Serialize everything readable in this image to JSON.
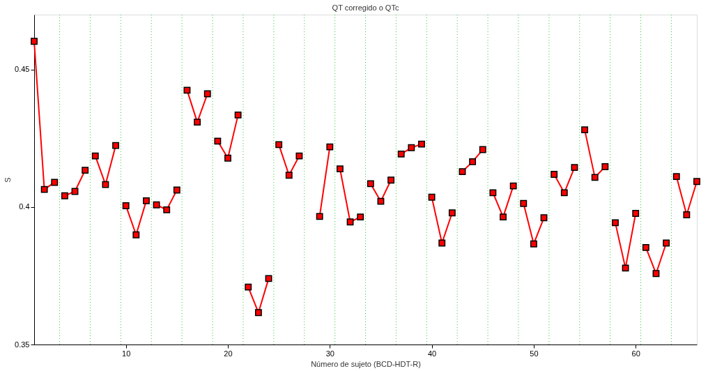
{
  "chart_data": {
    "type": "line",
    "title": "QT corregido o QTc",
    "xlabel": "Número de sujeto (BCD-HDT-R)",
    "ylabel": "S",
    "xlim": [
      1,
      66
    ],
    "ylim": [
      0.35,
      0.47
    ],
    "xticks": [
      10,
      20,
      30,
      40,
      50,
      60
    ],
    "yticks": [
      {
        "value": 0.35,
        "label": "0.35"
      },
      {
        "value": 0.4,
        "label": "0.4"
      },
      {
        "value": 0.45,
        "label": "0.45"
      }
    ],
    "grid": false,
    "marker": "square",
    "line_style": "solid",
    "series": [
      {
        "color": "#ff0000",
        "x": [
          1,
          2,
          3
        ],
        "values": [
          0.4603,
          0.4064,
          0.409
        ]
      },
      {
        "color": "#ff0000",
        "x": [
          4,
          5,
          6
        ],
        "values": [
          0.4041,
          0.4057,
          0.4134
        ]
      },
      {
        "color": "#ff0000",
        "x": [
          7,
          8,
          9
        ],
        "values": [
          0.4186,
          0.4082,
          0.4224
        ]
      },
      {
        "color": "#ff0000",
        "x": [
          10,
          11,
          12
        ],
        "values": [
          0.4005,
          0.3899,
          0.4023
        ]
      },
      {
        "color": "#ff0000",
        "x": [
          13,
          14,
          15
        ],
        "values": [
          0.4008,
          0.399,
          0.4062
        ]
      },
      {
        "color": "#ff0000",
        "x": [
          16,
          17,
          18
        ],
        "values": [
          0.4425,
          0.4309,
          0.4412
        ]
      },
      {
        "color": "#ff0000",
        "x": [
          19,
          20,
          21
        ],
        "values": [
          0.424,
          0.4178,
          0.4335
        ]
      },
      {
        "color": "#ff0000",
        "x": [
          22,
          23,
          24
        ],
        "values": [
          0.3709,
          0.3616,
          0.374
        ]
      },
      {
        "color": "#ff0000",
        "x": [
          25,
          26,
          27
        ],
        "values": [
          0.4227,
          0.4116,
          0.4186
        ]
      },
      {
        "color": "#ff0000",
        "x": [
          29,
          30
        ],
        "values": [
          0.3966,
          0.4219
        ]
      },
      {
        "color": "#ff0000",
        "x": [
          31,
          32,
          33
        ],
        "values": [
          0.4139,
          0.3946,
          0.3964
        ]
      },
      {
        "color": "#ff0000",
        "x": [
          34,
          35,
          36
        ],
        "values": [
          0.4085,
          0.4021,
          0.4098
        ]
      },
      {
        "color": "#ff0000",
        "x": [
          37,
          38,
          39
        ],
        "values": [
          0.4193,
          0.4216,
          0.4229
        ]
      },
      {
        "color": "#ff0000",
        "x": [
          40,
          41,
          42
        ],
        "values": [
          0.4036,
          0.3869,
          0.3979
        ]
      },
      {
        "color": "#ff0000",
        "x": [
          43,
          44,
          45
        ],
        "values": [
          0.4129,
          0.4165,
          0.4209
        ]
      },
      {
        "color": "#ff0000",
        "x": [
          46,
          47,
          48
        ],
        "values": [
          0.4052,
          0.3964,
          0.4077
        ]
      },
      {
        "color": "#ff0000",
        "x": [
          49,
          50,
          51
        ],
        "values": [
          0.4013,
          0.3866,
          0.3961
        ]
      },
      {
        "color": "#ff0000",
        "x": [
          52,
          53,
          54
        ],
        "values": [
          0.4119,
          0.4052,
          0.4144
        ]
      },
      {
        "color": "#ff0000",
        "x": [
          55,
          56,
          57
        ],
        "values": [
          0.4281,
          0.4108,
          0.4147
        ]
      },
      {
        "color": "#ff0000",
        "x": [
          58,
          59,
          60
        ],
        "values": [
          0.3943,
          0.3778,
          0.3977
        ]
      },
      {
        "color": "#ff0000",
        "x": [
          61,
          62,
          63
        ],
        "values": [
          0.3853,
          0.3758,
          0.3869
        ]
      },
      {
        "color": "#ff0000",
        "x": [
          64,
          65,
          66
        ],
        "values": [
          0.4111,
          0.3972,
          0.4093
        ]
      }
    ],
    "ref_lines": [
      {
        "axis": "x",
        "value": 3.5,
        "color": "#33cc33",
        "line_style": "dotted"
      },
      {
        "axis": "x",
        "value": 6.5,
        "color": "#33cc33",
        "line_style": "dotted"
      },
      {
        "axis": "x",
        "value": 9.5,
        "color": "#33cc33",
        "line_style": "dotted"
      },
      {
        "axis": "x",
        "value": 12.5,
        "color": "#33cc33",
        "line_style": "dotted"
      },
      {
        "axis": "x",
        "value": 15.5,
        "color": "#33cc33",
        "line_style": "dotted"
      },
      {
        "axis": "x",
        "value": 18.5,
        "color": "#33cc33",
        "line_style": "dotted"
      },
      {
        "axis": "x",
        "value": 21.5,
        "color": "#33cc33",
        "line_style": "dotted"
      },
      {
        "axis": "x",
        "value": 24.5,
        "color": "#33cc33",
        "line_style": "dotted"
      },
      {
        "axis": "x",
        "value": 27.5,
        "color": "#33cc33",
        "line_style": "dotted"
      },
      {
        "axis": "x",
        "value": 30.5,
        "color": "#33cc33",
        "line_style": "dotted"
      },
      {
        "axis": "x",
        "value": 33.5,
        "color": "#33cc33",
        "line_style": "dotted"
      },
      {
        "axis": "x",
        "value": 36.5,
        "color": "#33cc33",
        "line_style": "dotted"
      },
      {
        "axis": "x",
        "value": 39.5,
        "color": "#33cc33",
        "line_style": "dotted"
      },
      {
        "axis": "x",
        "value": 42.5,
        "color": "#33cc33",
        "line_style": "dotted"
      },
      {
        "axis": "x",
        "value": 45.5,
        "color": "#33cc33",
        "line_style": "dotted"
      },
      {
        "axis": "x",
        "value": 48.5,
        "color": "#33cc33",
        "line_style": "dotted"
      },
      {
        "axis": "x",
        "value": 51.5,
        "color": "#33cc33",
        "line_style": "dotted"
      },
      {
        "axis": "x",
        "value": 54.5,
        "color": "#33cc33",
        "line_style": "dotted"
      },
      {
        "axis": "x",
        "value": 57.5,
        "color": "#33cc33",
        "line_style": "dotted"
      },
      {
        "axis": "x",
        "value": 60.5,
        "color": "#33cc33",
        "line_style": "dotted"
      },
      {
        "axis": "x",
        "value": 63.5,
        "color": "#33cc33",
        "line_style": "dotted"
      }
    ]
  }
}
